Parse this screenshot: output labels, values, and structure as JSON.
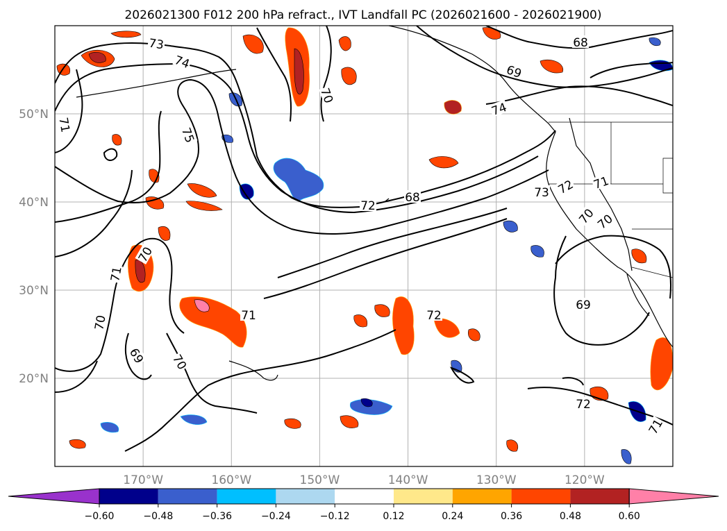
{
  "title": "2026021300 F012 200 hPa refract., IVT Landfall PC (2026021600 - 2026021900)",
  "map": {
    "lat_labels": [
      "50°N",
      "40°N",
      "30°N",
      "20°N"
    ],
    "lon_labels": [
      "170°W",
      "160°W",
      "150°W",
      "140°W",
      "130°W",
      "120°W"
    ],
    "lat_values": [
      50,
      40,
      30,
      20
    ],
    "lon_values": [
      -170,
      -160,
      -150,
      -140,
      -130,
      -120
    ],
    "extent": {
      "lon_min": -180,
      "lon_max": -110,
      "lat_min": 10,
      "lat_max": 60
    },
    "grid": true,
    "contour_labels": [
      "73",
      "74",
      "75",
      "71",
      "70",
      "70",
      "71",
      "72",
      "68",
      "68",
      "69",
      "74",
      "73",
      "72",
      "71",
      "70",
      "70",
      "71",
      "70",
      "69",
      "70",
      "72",
      "69",
      "72",
      "71"
    ]
  },
  "colorbar": {
    "ticks": [
      "−0.60",
      "−0.48",
      "−0.36",
      "−0.24",
      "−0.12",
      "0.12",
      "0.24",
      "0.36",
      "0.48",
      "0.60"
    ],
    "colors": [
      "#9932cc",
      "#00008b",
      "#3a5fcd",
      "#00bfff",
      "#add8f0",
      "#ffffff",
      "#ffe88a",
      "#ffa500",
      "#ff4500",
      "#b22222",
      "#ff80a8"
    ]
  }
}
